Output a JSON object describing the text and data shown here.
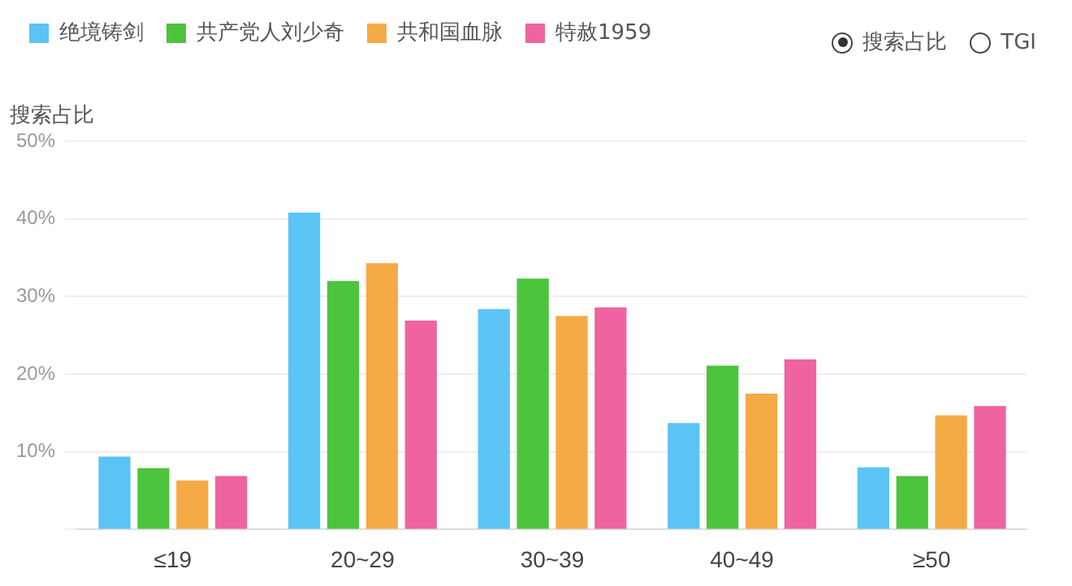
{
  "chart_data": {
    "type": "bar",
    "ylabel": "搜索占比",
    "categories": [
      "≤19",
      "20~29",
      "30~39",
      "40~49",
      "≥50"
    ],
    "series": [
      {
        "name": "绝境铸剑",
        "color": "#5bc4f5",
        "values": [
          9.4,
          40.8,
          28.4,
          13.7,
          8.0
        ]
      },
      {
        "name": "共产党人刘少奇",
        "color": "#4cc43c",
        "values": [
          7.9,
          32.0,
          32.3,
          21.1,
          6.9
        ]
      },
      {
        "name": "共和国血脉",
        "color": "#f5ab45",
        "values": [
          6.3,
          34.3,
          27.5,
          17.5,
          14.7
        ]
      },
      {
        "name": "特赦1959",
        "color": "#ef63a0",
        "values": [
          6.9,
          26.9,
          28.6,
          21.9,
          15.9
        ]
      }
    ],
    "ylim": [
      0,
      50
    ],
    "yticks": [
      {
        "value": 0,
        "label": null
      },
      {
        "value": 10,
        "label": "10%"
      },
      {
        "value": 20,
        "label": "20%"
      },
      {
        "value": 30,
        "label": "30%"
      },
      {
        "value": 40,
        "label": "40%"
      },
      {
        "value": 50,
        "label": "50%"
      }
    ],
    "grid": "y",
    "legend": "top left",
    "annotations": [
      "搜索占比",
      "TGI"
    ]
  }
}
